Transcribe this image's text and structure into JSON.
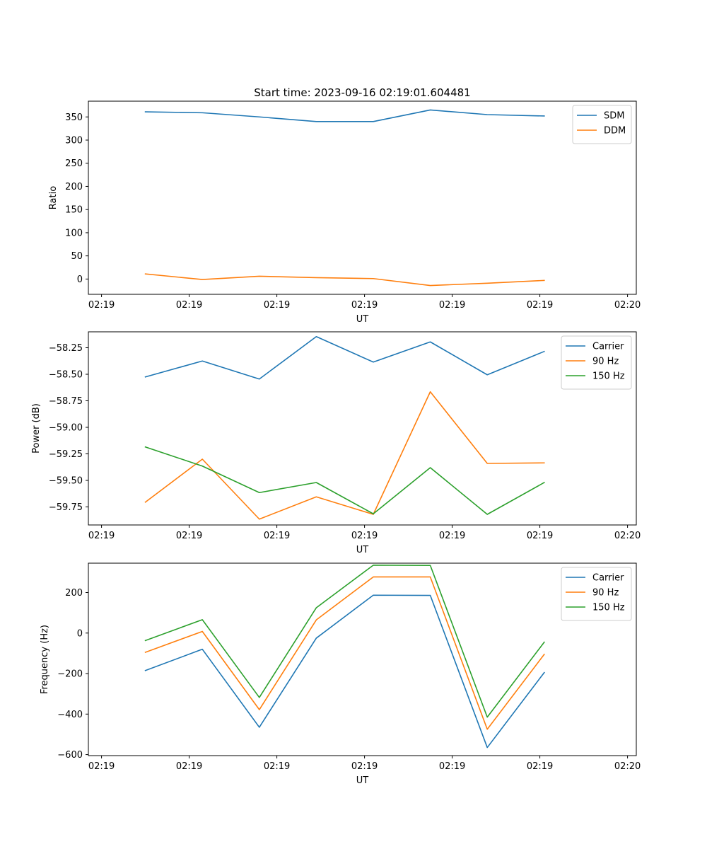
{
  "figure": {
    "title": "Start time: 2023-09-16 02:19:01.604481"
  },
  "colors": {
    "blue": "#1f77b4",
    "orange": "#ff7f0e",
    "green": "#2ca02c"
  },
  "chart_data": [
    {
      "type": "line",
      "title": "Start time: 2023-09-16 02:19:01.604481",
      "xlabel": "UT",
      "ylabel": "Ratio",
      "x_ticks": [
        "02:19",
        "02:19",
        "02:19",
        "02:19",
        "02:19",
        "02:19",
        "02:20"
      ],
      "xlim": [
        -0.3,
        12.2
      ],
      "x": [
        1,
        2.3,
        3.6,
        4.9,
        6.2,
        7.5,
        8.8,
        10.1
      ],
      "ylim": [
        -33,
        384
      ],
      "y_ticks": [
        0,
        50,
        100,
        150,
        200,
        250,
        300,
        350
      ],
      "y_tick_labels": [
        "0",
        "50",
        "100",
        "150",
        "200",
        "250",
        "300",
        "350"
      ],
      "legend": "top-right",
      "series": [
        {
          "name": "SDM",
          "color": "#1f77b4",
          "values": [
            361,
            359,
            350,
            340,
            340,
            365,
            355,
            352
          ]
        },
        {
          "name": "DDM",
          "color": "#ff7f0e",
          "values": [
            11,
            -1,
            6,
            3,
            1,
            -14,
            -9,
            -3
          ]
        }
      ]
    },
    {
      "type": "line",
      "title": "",
      "xlabel": "UT",
      "ylabel": "Power (dB)",
      "x_ticks": [
        "02:19",
        "02:19",
        "02:19",
        "02:19",
        "02:19",
        "02:19",
        "02:20"
      ],
      "xlim": [
        -0.3,
        12.2
      ],
      "x": [
        1,
        2.3,
        3.6,
        4.9,
        6.2,
        7.5,
        8.8,
        10.1
      ],
      "ylim": [
        -59.92,
        -58.1
      ],
      "y_ticks": [
        -59.75,
        -59.5,
        -59.25,
        -59.0,
        -58.75,
        -58.5,
        -58.25
      ],
      "y_tick_labels": [
        "−59.75",
        "−59.50",
        "−59.25",
        "−59.00",
        "−58.75",
        "−58.50",
        "−58.25"
      ],
      "legend": "top-right",
      "series": [
        {
          "name": "Carrier",
          "color": "#1f77b4",
          "values": [
            -58.525,
            -58.375,
            -58.545,
            -58.145,
            -58.385,
            -58.195,
            -58.505,
            -58.285
          ]
        },
        {
          "name": "90 Hz",
          "color": "#ff7f0e",
          "values": [
            -59.705,
            -59.3,
            -59.865,
            -59.655,
            -59.82,
            -58.665,
            -59.34,
            -59.335
          ]
        },
        {
          "name": "150 Hz",
          "color": "#2ca02c",
          "values": [
            -59.185,
            -59.365,
            -59.615,
            -59.52,
            -59.815,
            -59.38,
            -59.82,
            -59.52
          ]
        }
      ]
    },
    {
      "type": "line",
      "title": "",
      "xlabel": "UT",
      "ylabel": "Frequency (Hz)",
      "x_ticks": [
        "02:19",
        "02:19",
        "02:19",
        "02:19",
        "02:19",
        "02:19",
        "02:20"
      ],
      "xlim": [
        -0.3,
        12.2
      ],
      "x": [
        1,
        2.3,
        3.6,
        4.9,
        6.2,
        7.5,
        8.8,
        10.1
      ],
      "ylim": [
        -605,
        345
      ],
      "y_ticks": [
        -600,
        -400,
        -200,
        0,
        200
      ],
      "y_tick_labels": [
        "−600",
        "−400",
        "−200",
        "0",
        "200"
      ],
      "legend": "top-right",
      "series": [
        {
          "name": "Carrier",
          "color": "#1f77b4",
          "values": [
            -185,
            -80,
            -465,
            -25,
            187,
            186,
            -565,
            -195
          ]
        },
        {
          "name": "90 Hz",
          "color": "#ff7f0e",
          "values": [
            -95,
            8,
            -378,
            65,
            277,
            277,
            -475,
            -105
          ]
        },
        {
          "name": "150 Hz",
          "color": "#2ca02c",
          "values": [
            -37,
            66,
            -318,
            125,
            335,
            334,
            -415,
            -45
          ]
        }
      ]
    }
  ]
}
